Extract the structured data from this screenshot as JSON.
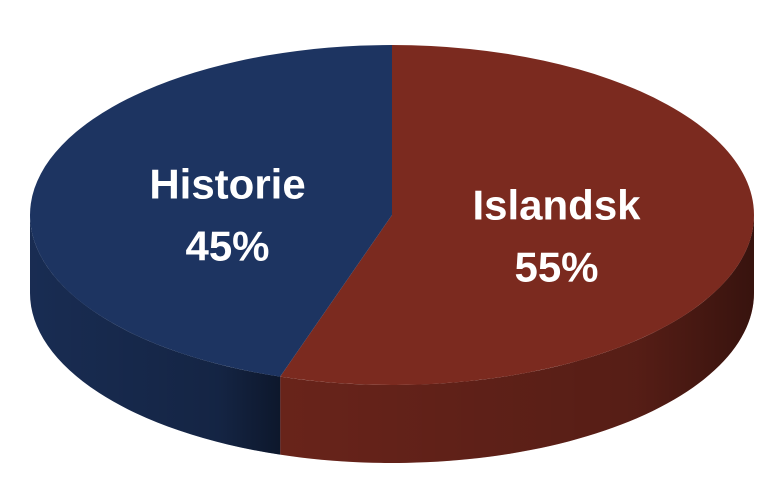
{
  "chart_data": {
    "type": "pie",
    "style": "3d",
    "title": "",
    "slices": [
      {
        "label": "Islandsk",
        "value": 55,
        "value_label": "55%",
        "color": "#7b2a1f"
      },
      {
        "label": "Historie",
        "value": 45,
        "value_label": "45%",
        "color": "#1d3461"
      }
    ],
    "start_angle_deg": 0,
    "direction": "clockwise",
    "legend": "none",
    "data_labels": "inside"
  }
}
